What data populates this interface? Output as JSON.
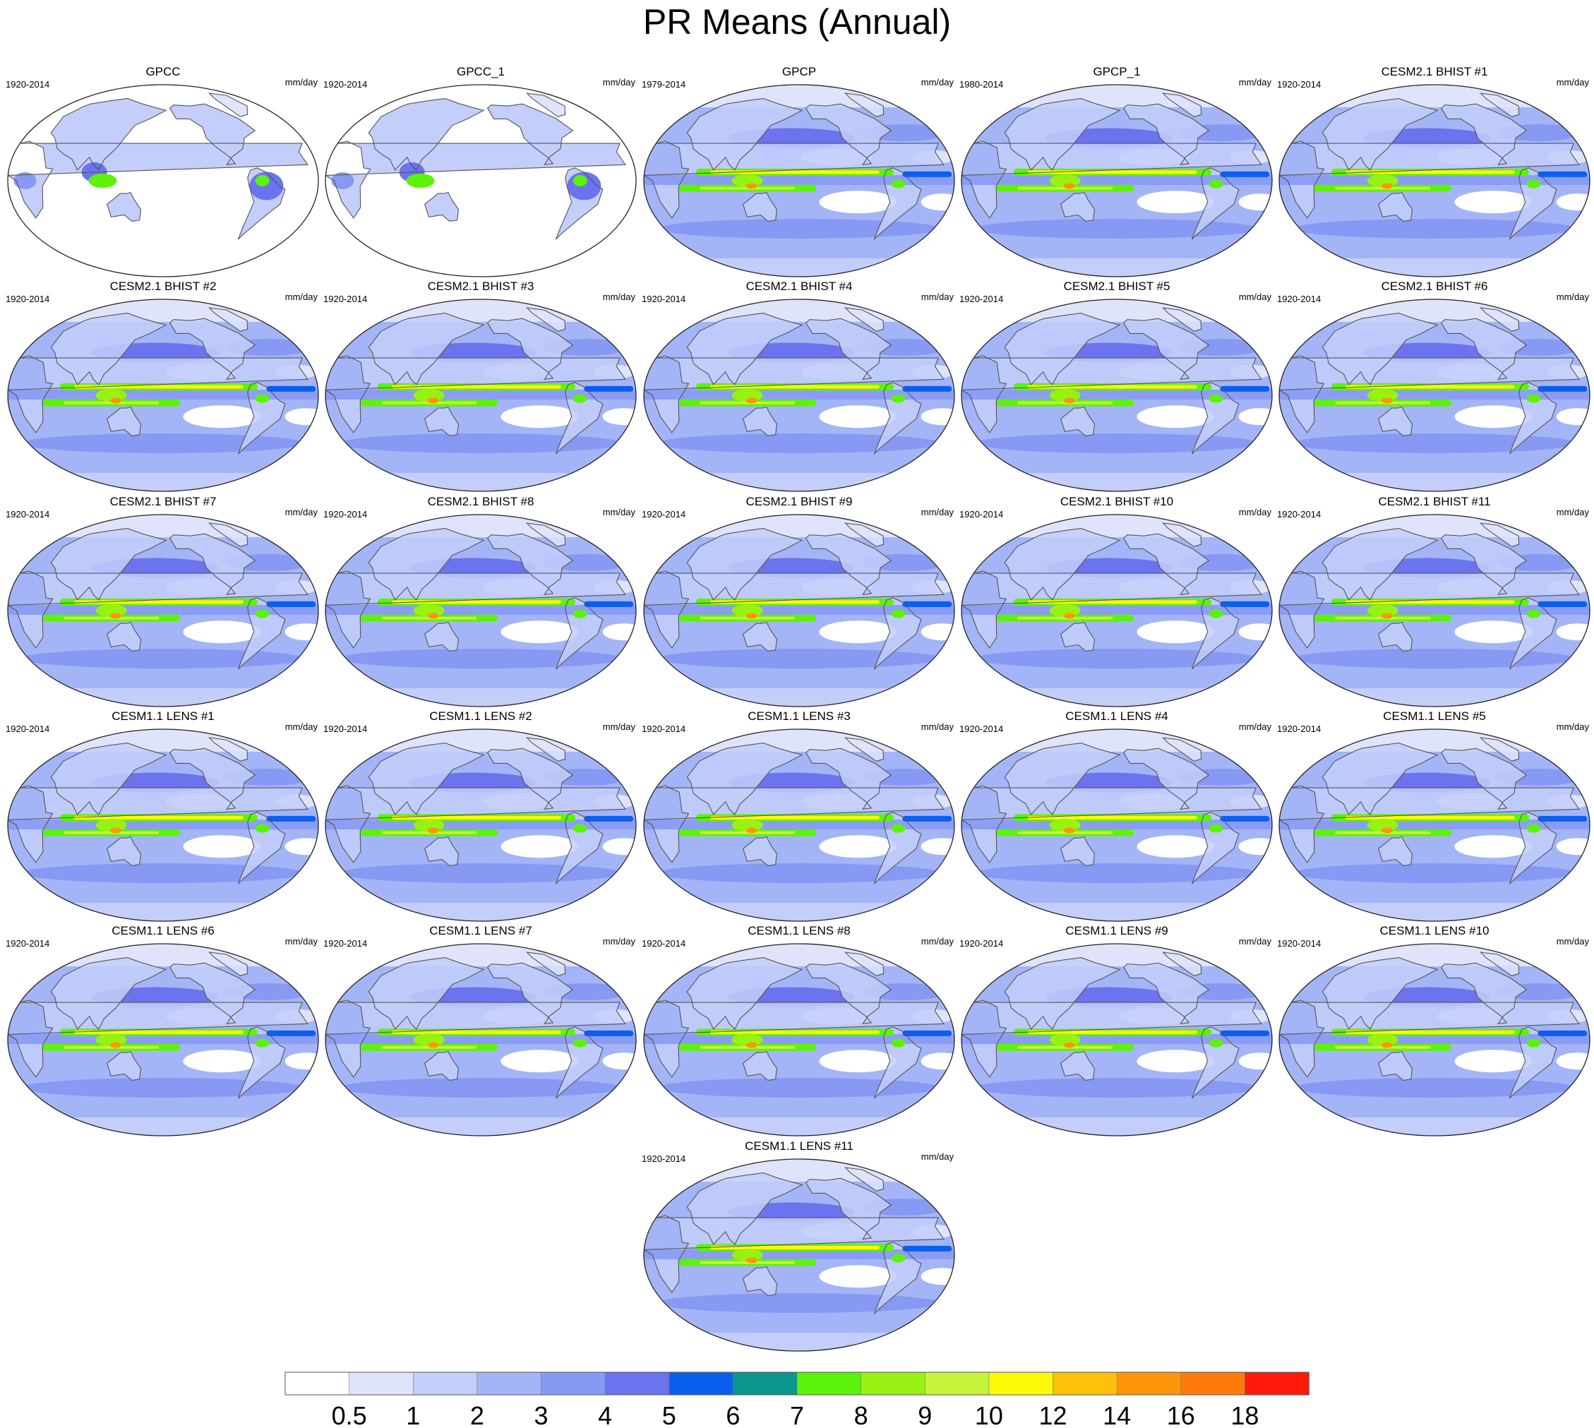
{
  "title": "PR Means (Annual)",
  "chart_data": {
    "type": "heatmap",
    "title": "PR Means (Annual)",
    "projection": "Robinson (Pacific-centered)",
    "panels": [
      {
        "title": "GPCC",
        "years": "1920-2014",
        "units": "mm/day",
        "style": "land"
      },
      {
        "title": "GPCC_1",
        "years": "1920-2014",
        "units": "mm/day",
        "style": "land"
      },
      {
        "title": "GPCP",
        "years": "1979-2014",
        "units": "mm/day",
        "style": "obs"
      },
      {
        "title": "GPCP_1",
        "years": "1980-2014",
        "units": "mm/day",
        "style": "obs"
      },
      {
        "title": "CESM2.1 BHIST #1",
        "years": "1920-2014",
        "units": "mm/day",
        "style": "cesm2"
      },
      {
        "title": "CESM2.1 BHIST #2",
        "years": "1920-2014",
        "units": "mm/day",
        "style": "cesm2"
      },
      {
        "title": "CESM2.1 BHIST #3",
        "years": "1920-2014",
        "units": "mm/day",
        "style": "cesm2"
      },
      {
        "title": "CESM2.1 BHIST #4",
        "years": "1920-2014",
        "units": "mm/day",
        "style": "cesm2"
      },
      {
        "title": "CESM2.1 BHIST #5",
        "years": "1920-2014",
        "units": "mm/day",
        "style": "cesm2"
      },
      {
        "title": "CESM2.1 BHIST #6",
        "years": "1920-2014",
        "units": "mm/day",
        "style": "cesm2"
      },
      {
        "title": "CESM2.1 BHIST #7",
        "years": "1920-2014",
        "units": "mm/day",
        "style": "cesm2"
      },
      {
        "title": "CESM2.1 BHIST #8",
        "years": "1920-2014",
        "units": "mm/day",
        "style": "cesm2"
      },
      {
        "title": "CESM2.1 BHIST #9",
        "years": "1920-2014",
        "units": "mm/day",
        "style": "cesm2"
      },
      {
        "title": "CESM2.1 BHIST #10",
        "years": "1920-2014",
        "units": "mm/day",
        "style": "cesm2"
      },
      {
        "title": "CESM2.1 BHIST #11",
        "years": "1920-2014",
        "units": "mm/day",
        "style": "cesm2"
      },
      {
        "title": "CESM1.1 LENS #1",
        "years": "1920-2014",
        "units": "mm/day",
        "style": "cesm1"
      },
      {
        "title": "CESM1.1 LENS #2",
        "years": "1920-2014",
        "units": "mm/day",
        "style": "cesm1"
      },
      {
        "title": "CESM1.1 LENS #3",
        "years": "1920-2014",
        "units": "mm/day",
        "style": "cesm1"
      },
      {
        "title": "CESM1.1 LENS #4",
        "years": "1920-2014",
        "units": "mm/day",
        "style": "cesm1"
      },
      {
        "title": "CESM1.1 LENS #5",
        "years": "1920-2014",
        "units": "mm/day",
        "style": "cesm1"
      },
      {
        "title": "CESM1.1 LENS #6",
        "years": "1920-2014",
        "units": "mm/day",
        "style": "cesm1"
      },
      {
        "title": "CESM1.1 LENS #7",
        "years": "1920-2014",
        "units": "mm/day",
        "style": "cesm1"
      },
      {
        "title": "CESM1.1 LENS #8",
        "years": "1920-2014",
        "units": "mm/day",
        "style": "cesm1"
      },
      {
        "title": "CESM1.1 LENS #9",
        "years": "1920-2014",
        "units": "mm/day",
        "style": "cesm1"
      },
      {
        "title": "CESM1.1 LENS #10",
        "years": "1920-2014",
        "units": "mm/day",
        "style": "cesm1"
      },
      {
        "title": "CESM1.1 LENS #11",
        "years": "1920-2014",
        "units": "mm/day",
        "style": "cesm1"
      }
    ],
    "colorbar": {
      "levels": [
        "0.5",
        "1",
        "2",
        "3",
        "4",
        "5",
        "6",
        "7",
        "8",
        "9",
        "10",
        "12",
        "14",
        "16",
        "18"
      ],
      "colors": [
        "#ffffff",
        "#dfe4fb",
        "#c3cefa",
        "#a3b5f7",
        "#8799f3",
        "#6b73ee",
        "#0a5fee",
        "#0b968c",
        "#5cf20a",
        "#97f213",
        "#c6f43a",
        "#fefa06",
        "#fec00a",
        "#fe960a",
        "#fe7a0a",
        "#fe1a0a"
      ],
      "units": "mm/day"
    }
  }
}
